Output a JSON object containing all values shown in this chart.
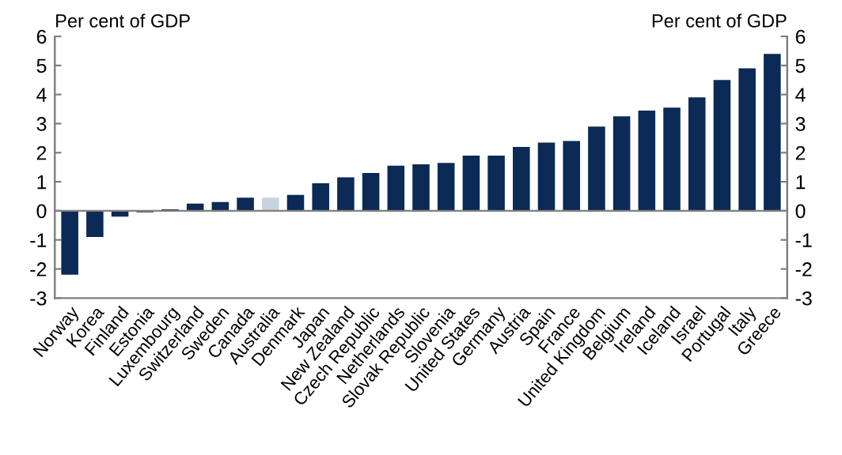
{
  "chart_data": {
    "type": "bar",
    "ylabel": "Per cent of GDP",
    "y2label": "Per cent of GDP",
    "categories": [
      "Norway",
      "Korea",
      "Finland",
      "Estonia",
      "Luxembourg",
      "Switzerland",
      "Sweden",
      "Canada",
      "Australia",
      "Denmark",
      "Japan",
      "New Zealand",
      "Czech Republic",
      "Netherlands",
      "Slovak Republic",
      "Slovenia",
      "United States",
      "Germany",
      "Austria",
      "Spain",
      "France",
      "United Kingdom",
      "Belgium",
      "Ireland",
      "Iceland",
      "Israel",
      "Portugal",
      "Italy",
      "Greece"
    ],
    "values": [
      -2.2,
      -0.9,
      -0.2,
      -0.05,
      0.05,
      0.25,
      0.3,
      0.45,
      0.45,
      0.55,
      0.95,
      1.15,
      1.3,
      1.55,
      1.6,
      1.65,
      1.9,
      1.9,
      2.2,
      2.35,
      2.4,
      2.9,
      3.25,
      3.45,
      3.55,
      3.9,
      4.5,
      4.9,
      5.4
    ],
    "colors": [
      "#0b2a55",
      "#0b2a55",
      "#0b2a55",
      "#0b2a55",
      "#0b2a55",
      "#0b2a55",
      "#0b2a55",
      "#0b2a55",
      "#c9d3df",
      "#0b2a55",
      "#0b2a55",
      "#0b2a55",
      "#0b2a55",
      "#0b2a55",
      "#0b2a55",
      "#0b2a55",
      "#0b2a55",
      "#0b2a55",
      "#0b2a55",
      "#0b2a55",
      "#0b2a55",
      "#0b2a55",
      "#0b2a55",
      "#0b2a55",
      "#0b2a55",
      "#0b2a55",
      "#0b2a55",
      "#0b2a55",
      "#0b2a55"
    ],
    "ylim": [
      -3,
      6
    ],
    "yticks": [
      -3,
      -2,
      -1,
      0,
      1,
      2,
      3,
      4,
      5,
      6
    ],
    "y2lim": [
      -3,
      6
    ],
    "y2ticks": [
      -3,
      -2,
      -1,
      0,
      1,
      2,
      3,
      4,
      5,
      6
    ],
    "legend": false
  }
}
